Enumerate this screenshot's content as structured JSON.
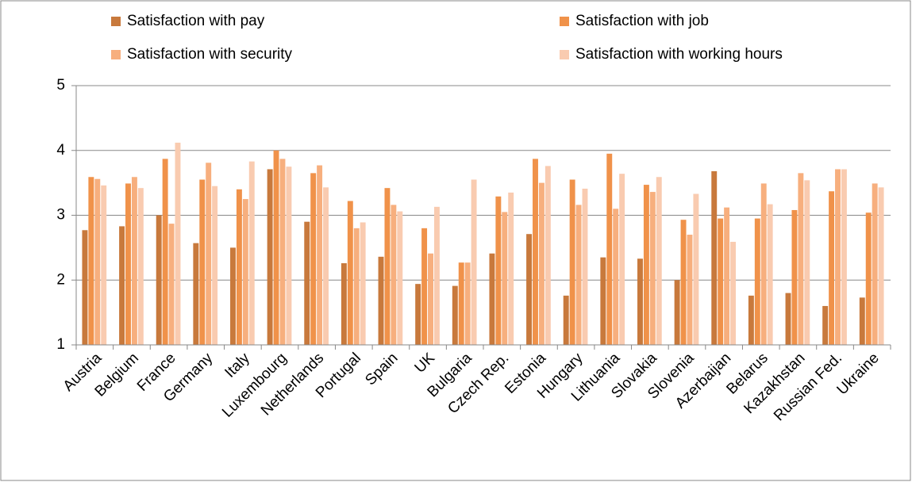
{
  "chart_data": {
    "type": "bar",
    "categories": [
      "Austria",
      "Belgium",
      "France",
      "Germany",
      "Italy",
      "Luxembourg",
      "Netherlands",
      "Portugal",
      "Spain",
      "UK",
      "Bulgaria",
      "Czech Rep.",
      "Estonia",
      "Hungary",
      "Lithuania",
      "Slovakia",
      "Slovenia",
      "Azerbaijan",
      "Belarus",
      "Kazakhstan",
      "Russian Fed.",
      "Ukraine"
    ],
    "series": [
      {
        "name": "Satisfaction with pay",
        "color": "#c8793c",
        "values": [
          2.77,
          2.83,
          3.0,
          2.57,
          2.5,
          3.71,
          2.9,
          2.26,
          2.36,
          1.94,
          1.91,
          2.41,
          2.71,
          1.76,
          2.35,
          2.33,
          2.0,
          3.68,
          1.76,
          1.8,
          1.6,
          1.73
        ]
      },
      {
        "name": "Satisfaction with job",
        "color": "#f0924a",
        "values": [
          3.59,
          3.49,
          3.87,
          3.55,
          3.4,
          4.0,
          3.65,
          3.22,
          3.42,
          2.8,
          2.27,
          3.29,
          3.87,
          3.55,
          3.95,
          3.47,
          2.93,
          2.95,
          2.95,
          3.08,
          3.37,
          3.04
        ]
      },
      {
        "name": "Satisfaction with security",
        "color": "#f7af7e",
        "values": [
          3.56,
          3.59,
          2.87,
          3.81,
          3.25,
          3.87,
          3.77,
          2.8,
          3.16,
          2.41,
          2.27,
          3.05,
          3.5,
          3.16,
          3.1,
          3.36,
          2.7,
          3.12,
          3.49,
          3.65,
          3.71,
          3.49
        ]
      },
      {
        "name": "Satisfaction with working hours",
        "color": "#f9cbb0",
        "values": [
          3.46,
          3.42,
          4.12,
          3.45,
          3.83,
          3.75,
          3.43,
          2.89,
          3.06,
          3.13,
          3.55,
          3.35,
          3.76,
          3.41,
          3.64,
          3.59,
          3.33,
          2.59,
          3.17,
          3.54,
          3.71,
          3.43
        ]
      }
    ],
    "ylim": [
      1,
      5
    ],
    "yticks": [
      1,
      2,
      3,
      4,
      5
    ],
    "grid": true,
    "legend": "top"
  }
}
